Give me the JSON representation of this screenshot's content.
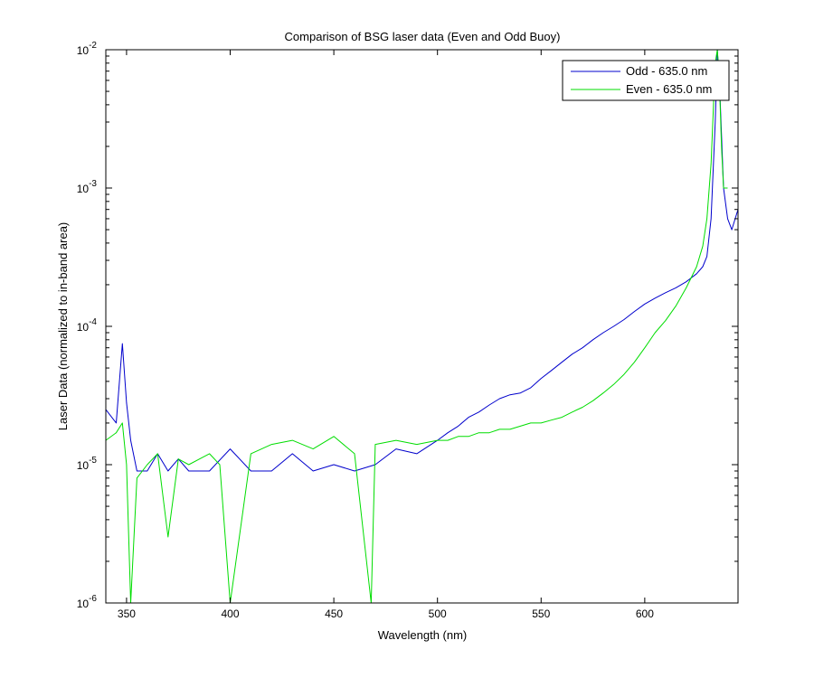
{
  "chart_data": {
    "type": "line",
    "title": "Comparison of BSG laser data (Even and Odd Buoy)",
    "xlabel": "Wavelength (nm)",
    "ylabel": "Laser Data (normalized to in-band area)",
    "xlim": [
      340,
      645
    ],
    "ylim": [
      1e-06,
      0.01
    ],
    "yscale": "log",
    "grid": false,
    "legend_position": "top-right",
    "x_ticks": [
      350,
      400,
      450,
      500,
      550,
      600
    ],
    "x_tick_labels": [
      "350",
      "400",
      "450",
      "500",
      "550",
      "600"
    ],
    "y_ticks": [
      {
        "value": 1e-06,
        "base": "10",
        "exp": "-6"
      },
      {
        "value": 1e-05,
        "base": "10",
        "exp": "-5"
      },
      {
        "value": 0.0001,
        "base": "10",
        "exp": "-4"
      },
      {
        "value": 0.001,
        "base": "10",
        "exp": "-3"
      },
      {
        "value": 0.01,
        "base": "10",
        "exp": "-2"
      }
    ],
    "series": [
      {
        "name": "Odd - 635.0 nm",
        "color": "#0000cc",
        "x": [
          340,
          345,
          348,
          350,
          352,
          355,
          360,
          365,
          370,
          375,
          380,
          390,
          400,
          410,
          420,
          430,
          440,
          450,
          460,
          470,
          480,
          490,
          500,
          505,
          510,
          515,
          520,
          525,
          530,
          535,
          540,
          545,
          550,
          555,
          560,
          565,
          570,
          575,
          580,
          585,
          590,
          595,
          600,
          605,
          610,
          615,
          620,
          625,
          628,
          630,
          632,
          634,
          635,
          636,
          638,
          640,
          642,
          645
        ],
        "y": [
          2.5e-05,
          2e-05,
          7.5e-05,
          2.8e-05,
          1.5e-05,
          9e-06,
          9e-06,
          1.2e-05,
          9e-06,
          1.1e-05,
          9e-06,
          9e-06,
          1.3e-05,
          9e-06,
          9e-06,
          1.2e-05,
          9e-06,
          1e-05,
          9e-06,
          1e-05,
          1.3e-05,
          1.2e-05,
          1.5e-05,
          1.7e-05,
          1.9e-05,
          2.2e-05,
          2.4e-05,
          2.7e-05,
          3e-05,
          3.2e-05,
          3.3e-05,
          3.6e-05,
          4.2e-05,
          4.8e-05,
          5.5e-05,
          6.3e-05,
          7e-05,
          8e-05,
          9e-05,
          0.0001,
          0.000112,
          0.000128,
          0.000145,
          0.00016,
          0.000175,
          0.00019,
          0.00021,
          0.00024,
          0.00027,
          0.00032,
          0.0006,
          0.003,
          0.01,
          0.006,
          0.001,
          0.0006,
          0.0005,
          0.0007
        ]
      },
      {
        "name": "Even - 635.0 nm",
        "color": "#00dd00",
        "x": [
          340,
          345,
          348,
          350,
          352,
          355,
          360,
          365,
          370,
          375,
          380,
          390,
          395,
          400,
          410,
          420,
          430,
          440,
          450,
          460,
          468,
          470,
          480,
          490,
          500,
          505,
          510,
          515,
          520,
          525,
          530,
          535,
          540,
          545,
          550,
          555,
          560,
          565,
          570,
          575,
          580,
          585,
          590,
          595,
          600,
          605,
          610,
          615,
          620,
          625,
          628,
          630,
          632,
          634,
          635,
          636,
          637,
          638,
          640
        ],
        "y": [
          1.5e-05,
          1.7e-05,
          2e-05,
          1e-05,
          1e-06,
          8e-06,
          1e-05,
          1.2e-05,
          3e-06,
          1.1e-05,
          1e-05,
          1.2e-05,
          1e-05,
          1e-06,
          1.2e-05,
          1.4e-05,
          1.5e-05,
          1.3e-05,
          1.6e-05,
          1.2e-05,
          1e-06,
          1.4e-05,
          1.5e-05,
          1.4e-05,
          1.5e-05,
          1.5e-05,
          1.6e-05,
          1.6e-05,
          1.7e-05,
          1.7e-05,
          1.8e-05,
          1.8e-05,
          1.9e-05,
          2e-05,
          2e-05,
          2.1e-05,
          2.2e-05,
          2.4e-05,
          2.6e-05,
          2.9e-05,
          3.3e-05,
          3.8e-05,
          4.5e-05,
          5.5e-05,
          7e-05,
          9e-05,
          0.00011,
          0.00014,
          0.00019,
          0.00027,
          0.00038,
          0.0006,
          0.0015,
          0.008,
          0.01,
          0.006,
          0.002,
          0.001,
          0.001
        ]
      }
    ]
  }
}
